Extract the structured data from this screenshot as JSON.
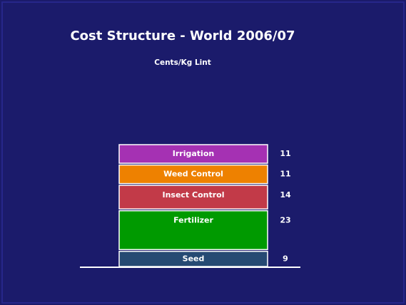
{
  "chart_data": {
    "type": "stacked-bar",
    "title": "Cost Structure - World 2006/07",
    "subtitle": "Cents/Kg Lint",
    "categories": [
      null
    ],
    "series": [
      {
        "name": "Seed",
        "color": "#264a73",
        "values": [
          9
        ]
      },
      {
        "name": "Fertilizer",
        "color": "#009a00",
        "values": [
          23
        ]
      },
      {
        "name": "Insect Control",
        "color": "#c23a48",
        "values": [
          14
        ]
      },
      {
        "name": "Weed Control",
        "color": "#ee8100",
        "values": [
          11
        ]
      },
      {
        "name": "Irrigation",
        "color": "#a531b3",
        "values": [
          11
        ]
      }
    ]
  }
}
